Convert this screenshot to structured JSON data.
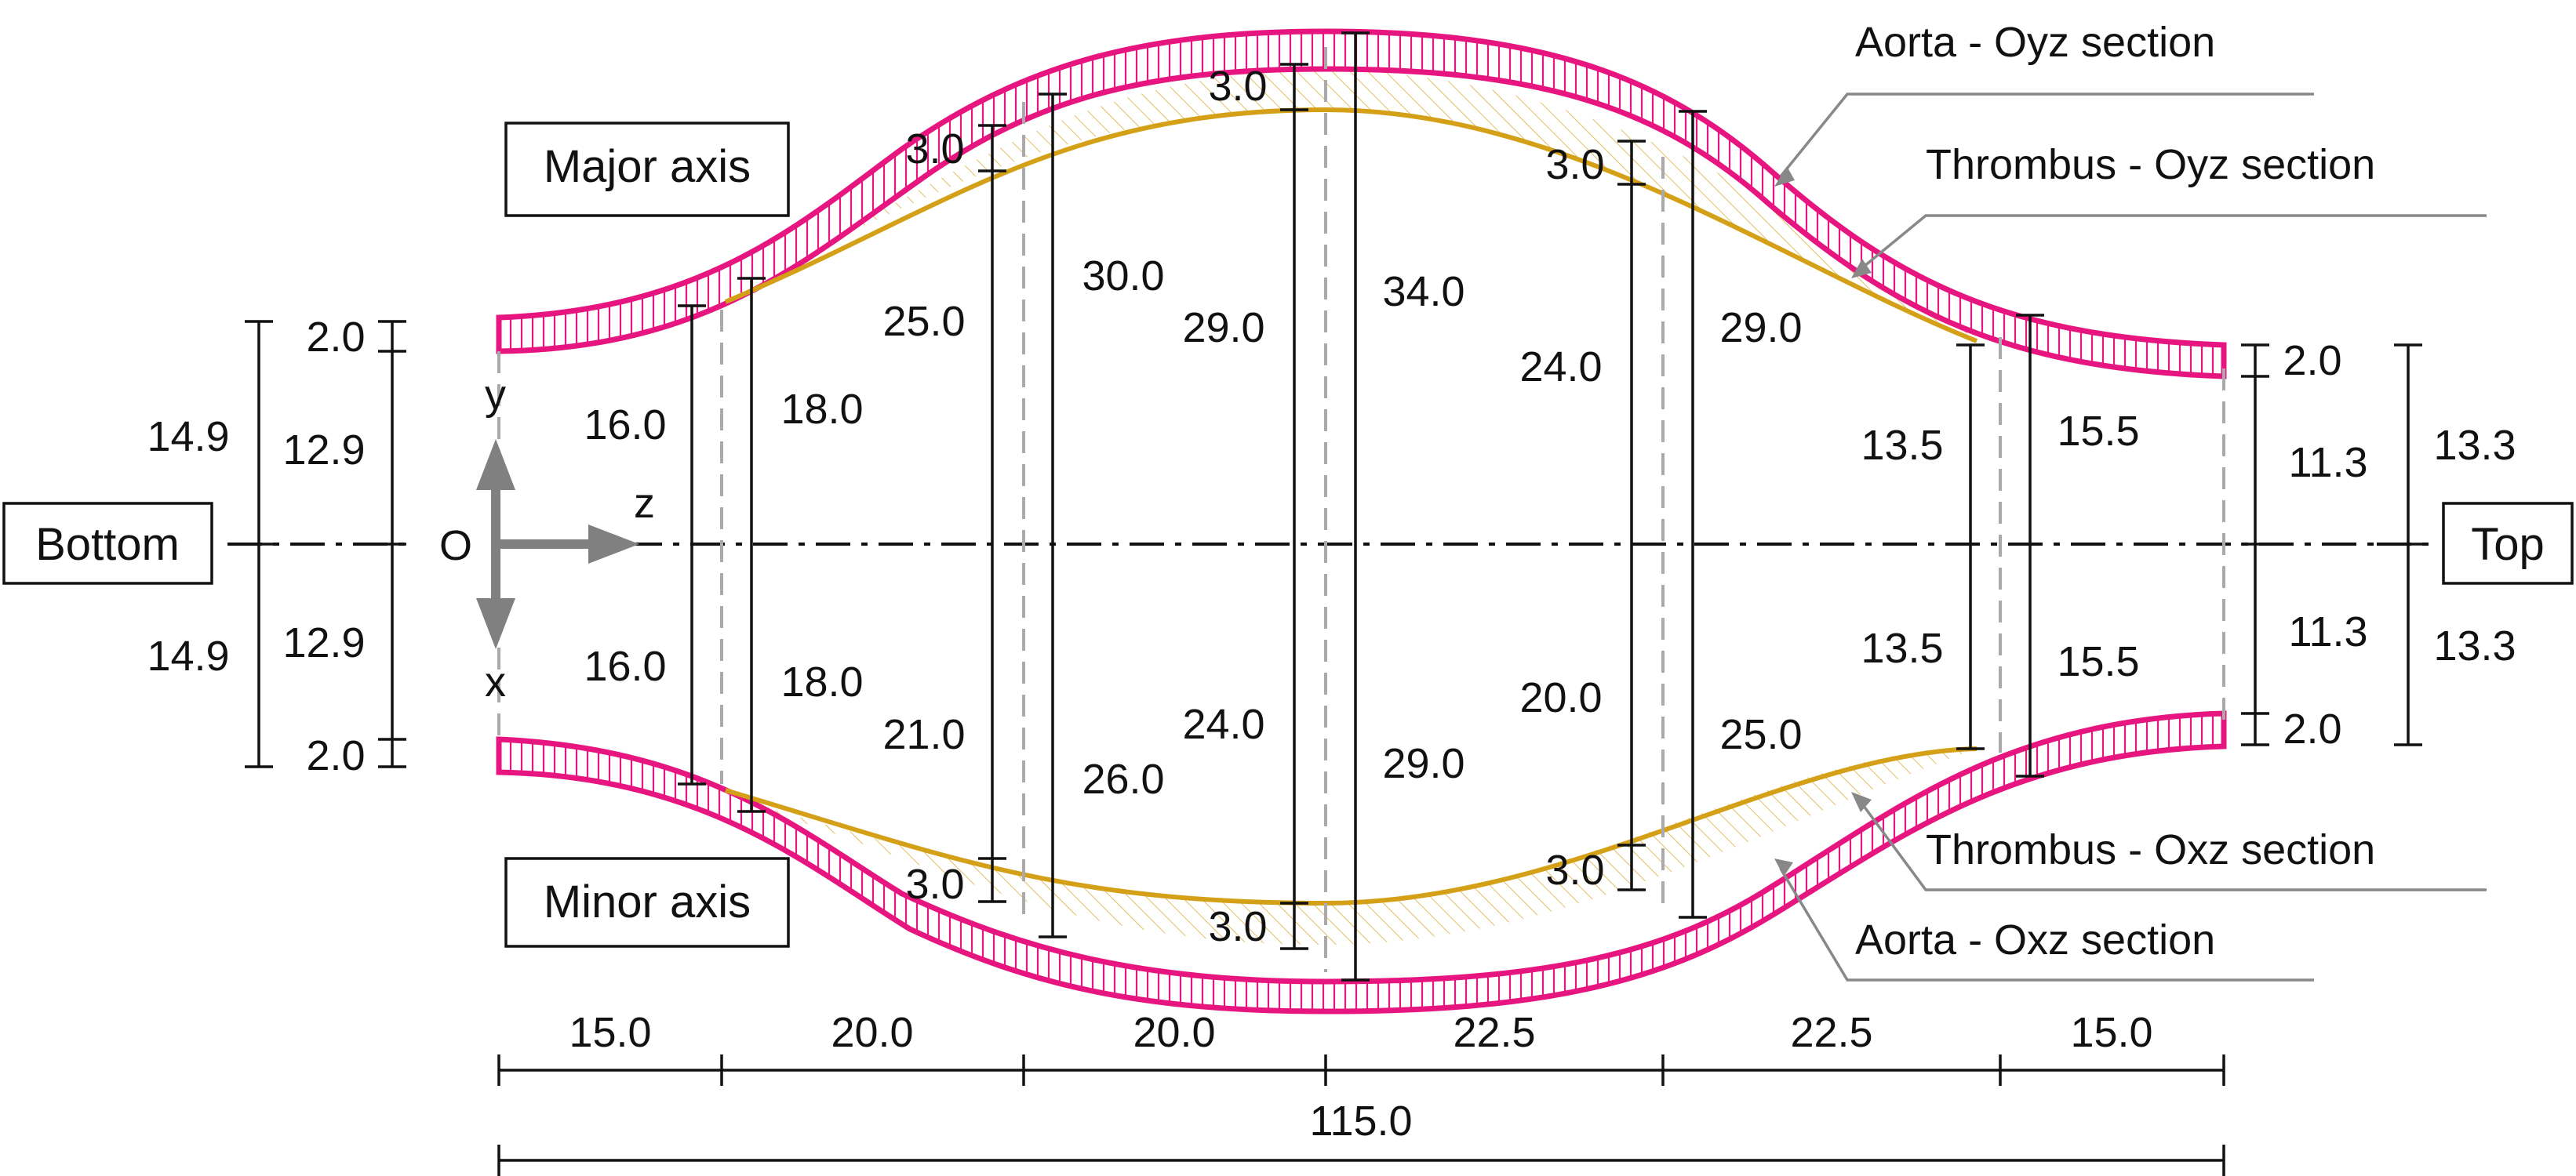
{
  "boxes": {
    "bottom": "Bottom",
    "top": "Top",
    "major_axis": "Major axis",
    "minor_axis": "Minor axis"
  },
  "legend": {
    "aorta_oyz": "Aorta - Oyz section",
    "thrombus_oyz": "Thrombus - Oyz section",
    "thrombus_oxz": "Thrombus - Oxz section",
    "aorta_oxz": "Aorta - Oxz section"
  },
  "axes": {
    "origin": "O",
    "y": "y",
    "z": "z",
    "x": "x"
  },
  "dims": {
    "left_total_top": "14.9",
    "left_total_bottom": "14.9",
    "left_inner_top": "12.9",
    "left_inner_bottom": "12.9",
    "left_wall_top": "2.0",
    "left_wall_bottom": "2.0",
    "s1_inner_top": "16.0",
    "s1_inner_bottom": "16.0",
    "s1_outer_top": "18.0",
    "s1_outer_bottom": "18.0",
    "s2_wall_top": "3.0",
    "s2_wall_bottom": "3.0",
    "s2_inner_top": "25.0",
    "s2_inner_bottom": "21.0",
    "s2_outer_top": "30.0",
    "s2_outer_bottom": "26.0",
    "s3_wall_top": "3.0",
    "s3_wall_bottom": "3.0",
    "s3_inner_top": "29.0",
    "s3_inner_bottom": "24.0",
    "s3_outer_top": "34.0",
    "s3_outer_bottom": "29.0",
    "s4_wall_top": "3.0",
    "s4_wall_bottom": "3.0",
    "s4_inner_top": "24.0",
    "s4_inner_bottom": "20.0",
    "s4_outer_top": "29.0",
    "s4_outer_bottom": "25.0",
    "s5_inner_top": "13.5",
    "s5_inner_bottom": "13.5",
    "s5_outer_top": "15.5",
    "s5_outer_bottom": "15.5",
    "right_inner_top": "11.3",
    "right_inner_bottom": "11.3",
    "right_wall_top": "2.0",
    "right_wall_bottom": "2.0",
    "right_total_top": "13.3",
    "right_total_bottom": "13.3"
  },
  "length_dims": {
    "seg1": "15.0",
    "seg2": "20.0",
    "seg3": "20.0",
    "seg4": "22.5",
    "seg5": "22.5",
    "seg6": "15.0",
    "total": "115.0"
  },
  "colors": {
    "aorta": "#e6157f",
    "thrombus": "#d4a017",
    "line": "#111111",
    "gray": "#888888"
  }
}
